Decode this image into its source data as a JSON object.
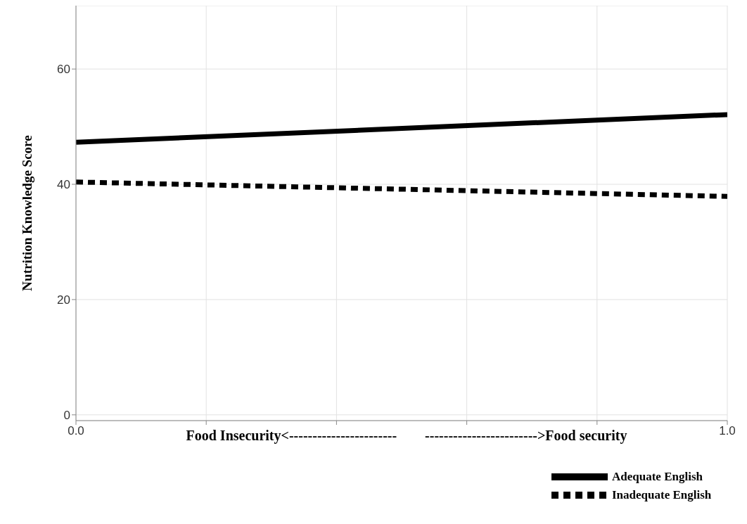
{
  "chart_data": {
    "type": "line",
    "xlabel": "Food Insecurity<-----------------------        ------------------------>Food security",
    "ylabel": "Nutrition Knowledge Score",
    "x": [
      0,
      1
    ],
    "series": [
      {
        "name": "Adequate English",
        "color": "#000000",
        "values": [
          47.3,
          52.1
        ],
        "line_style": "solid"
      },
      {
        "name": "Inadequate English",
        "color": "#000000",
        "values": [
          40.4,
          37.9
        ],
        "line_style": "dashed"
      }
    ],
    "xlim": [
      0,
      1
    ],
    "xticks": [
      {
        "value": 0,
        "label": "0.0"
      },
      {
        "value": 0.2,
        "label": null
      },
      {
        "value": 0.4,
        "label": null
      },
      {
        "value": 0.6,
        "label": null
      },
      {
        "value": 0.8,
        "label": null
      },
      {
        "value": 1,
        "label": "1.0"
      }
    ],
    "ylim": [
      -1,
      71
    ],
    "yticks": [
      0,
      20,
      40,
      60
    ],
    "grid": true,
    "legend": "bottom right",
    "marker": "none"
  }
}
